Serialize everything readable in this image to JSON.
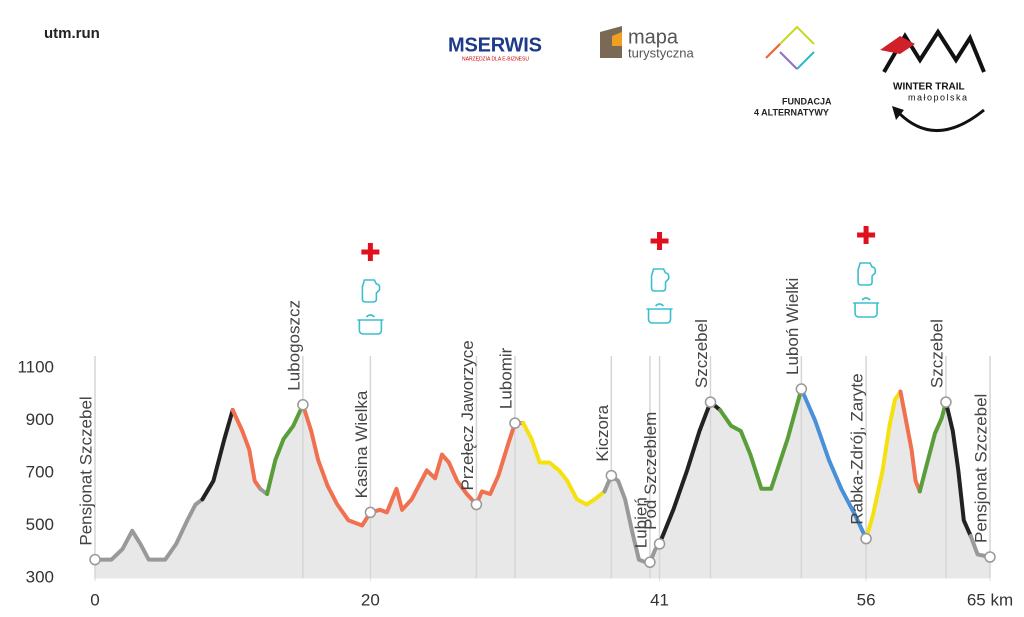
{
  "header": {
    "site": "utm.run",
    "logos": {
      "mserwis": "MSERWIS",
      "mserwis_tag": "NARZĘDZIA DLA E-BIZNESU",
      "mapa": "mapa",
      "mapa_sub": "turystyczna",
      "fundacja": "FUNDACJA",
      "fundacja_sub": "4 ALTERNATYWY",
      "winter": "WINTER TRAIL",
      "winter_sub": "małopolska"
    }
  },
  "chart_data": {
    "type": "line",
    "xlim": [
      0,
      65
    ],
    "xticks": [
      0,
      20,
      41,
      56,
      {
        "value": 65,
        "label": "65 km"
      }
    ],
    "ylim": [
      300,
      1100
    ],
    "yticks": [
      300,
      500,
      700,
      900,
      1100
    ],
    "grid": false,
    "fill": "#e8e8e8",
    "series": [
      {
        "color": "#999999",
        "x": [
          0,
          1.2,
          2.0,
          2.7,
          3.3,
          3.9,
          5.1,
          5.9,
          6.7,
          7.3,
          7.8
        ],
        "values": [
          370,
          370,
          410,
          480,
          430,
          370,
          370,
          430,
          520,
          580,
          600
        ]
      },
      {
        "color": "#222222",
        "x": [
          7.8,
          8.6,
          9.4,
          10.0
        ],
        "values": [
          600,
          670,
          830,
          940
        ]
      },
      {
        "color": "#f07050",
        "x": [
          10.0,
          10.7,
          11.2,
          11.6,
          12.0
        ],
        "values": [
          940,
          860,
          790,
          670,
          640
        ]
      },
      {
        "color": "#999999",
        "x": [
          12.0,
          12.5
        ],
        "values": [
          640,
          620
        ]
      },
      {
        "color": "#5a9e3a",
        "x": [
          12.5,
          13.1,
          13.7,
          14.4,
          15.1
        ],
        "values": [
          620,
          750,
          830,
          880,
          960
        ]
      },
      {
        "color": "#f07050",
        "x": [
          15.1,
          15.7,
          16.2,
          16.9,
          17.6,
          18.4,
          19.4,
          20.0,
          20.7,
          21.2,
          21.9,
          22.3,
          23.0,
          23.7,
          24.1,
          24.7,
          25.2,
          25.7,
          26.3,
          27.0,
          27.7,
          28.1,
          28.7,
          29.3,
          30.0,
          30.5,
          31.1
        ],
        "values": [
          960,
          860,
          750,
          650,
          580,
          520,
          500,
          550,
          560,
          550,
          640,
          560,
          600,
          670,
          710,
          680,
          770,
          740,
          670,
          620,
          580,
          630,
          620,
          690,
          810,
          890,
          890
        ]
      },
      {
        "color": "#f5e010",
        "x": [
          31.1,
          31.7,
          32.3,
          33.0,
          33.7,
          34.3,
          35.0,
          35.7,
          36.3,
          37.0
        ],
        "values": [
          890,
          830,
          740,
          740,
          710,
          670,
          600,
          580,
          600,
          630
        ]
      },
      {
        "color": "#999999",
        "x": [
          37.0,
          37.5,
          38.0,
          38.5,
          39.0,
          39.5,
          40.0,
          40.3,
          40.7,
          41.0
        ],
        "values": [
          630,
          690,
          670,
          600,
          480,
          370,
          360,
          360,
          410,
          430
        ]
      },
      {
        "color": "#222222",
        "x": [
          41.0,
          42.0,
          43.0,
          43.9,
          44.7,
          45.4
        ],
        "values": [
          430,
          560,
          710,
          860,
          970,
          940
        ]
      },
      {
        "color": "#5a9e3a",
        "x": [
          45.4,
          46.2,
          46.9,
          47.6,
          48.4,
          49.1,
          50.3,
          51.3
        ],
        "values": [
          940,
          880,
          860,
          770,
          640,
          640,
          830,
          1020
        ]
      },
      {
        "color": "#4a90d9",
        "x": [
          51.3,
          52.3,
          53.3,
          54.2,
          55.2,
          56.0
        ],
        "values": [
          1020,
          900,
          750,
          640,
          540,
          450
        ]
      },
      {
        "color": "#f5e010",
        "x": [
          56.0,
          56.5,
          57.2,
          57.7,
          58.1,
          58.5
        ],
        "values": [
          450,
          540,
          710,
          880,
          980,
          1010
        ]
      },
      {
        "color": "#f07050",
        "x": [
          58.5,
          58.9,
          59.3,
          59.6,
          59.9
        ],
        "values": [
          1010,
          900,
          790,
          670,
          630
        ]
      },
      {
        "color": "#5a9e3a",
        "x": [
          59.9,
          60.5,
          61.0,
          61.5,
          61.8
        ],
        "values": [
          630,
          750,
          850,
          910,
          970
        ]
      },
      {
        "color": "#222222",
        "x": [
          61.8,
          62.3,
          62.7,
          63.1,
          63.6
        ],
        "values": [
          970,
          860,
          710,
          520,
          460
        ]
      },
      {
        "color": "#999999",
        "x": [
          63.6,
          64.1,
          65.0
        ],
        "values": [
          460,
          390,
          380
        ]
      }
    ],
    "waypoints": [
      {
        "name": "Pensjonat Szczebel",
        "x": 0,
        "elevation": 370
      },
      {
        "name": "Lubogoszcz",
        "x": 15.1,
        "elevation": 960
      },
      {
        "name": "Kasina Wielka",
        "x": 20,
        "elevation": 550
      },
      {
        "name": "Przełęcz Jaworzyce",
        "x": 27.7,
        "elevation": 580
      },
      {
        "name": "Lubomir",
        "x": 30.5,
        "elevation": 890
      },
      {
        "name": "Kiczora",
        "x": 37.5,
        "elevation": 690
      },
      {
        "name": "Lubień",
        "x": 40.3,
        "elevation": 360
      },
      {
        "name": "Pod Szczeblem",
        "x": 41,
        "elevation": 430
      },
      {
        "name": "Szczebel",
        "x": 44.7,
        "elevation": 970
      },
      {
        "name": "Luboń Wielki",
        "x": 51.3,
        "elevation": 1020
      },
      {
        "name": "Rabka-Zdrój, Zaryte",
        "x": 56,
        "elevation": 450
      },
      {
        "name": "Szczebel",
        "x": 61.8,
        "elevation": 970
      },
      {
        "name": "Pensjonat Szczebel",
        "x": 65,
        "elevation": 380
      }
    ]
  }
}
